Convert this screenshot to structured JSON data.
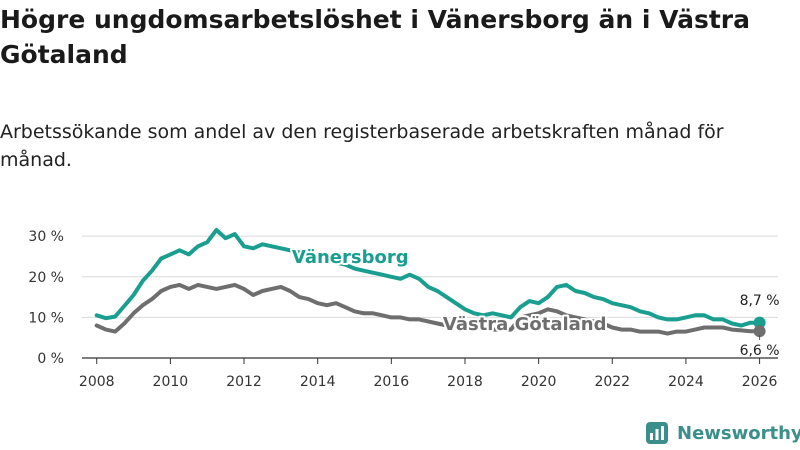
{
  "title": "Högre ungdomsarbetslöshet i Vänersborg än i Västra Götaland",
  "subtitle": "Arbetssökande som andel av den registerbaserade arbetskraften månad för månad.",
  "brand": "Newsworthy",
  "colors": {
    "vanersborg": "#1a9e8f",
    "vastra_gotaland": "#6e6e6e",
    "grid": "#d9d9d9",
    "axis": "#333333"
  },
  "chart_data": {
    "type": "line",
    "xlim": [
      2007.6,
      2026.5
    ],
    "ylim": [
      0,
      32
    ],
    "x_ticks": [
      2008,
      2010,
      2012,
      2014,
      2016,
      2018,
      2020,
      2022,
      2024,
      2026
    ],
    "x_tick_labels": [
      "2008",
      "2010",
      "2012",
      "2014",
      "2016",
      "2018",
      "2020",
      "2022",
      "2024",
      "2026"
    ],
    "y_ticks": [
      0,
      10,
      20,
      30
    ],
    "y_tick_labels": [
      "0 %",
      "10 %",
      "20 %",
      "30 %"
    ],
    "series": [
      {
        "name": "Vänersborg",
        "x": [
          2008.0,
          2008.25,
          2008.5,
          2008.75,
          2009.0,
          2009.25,
          2009.5,
          2009.75,
          2010.0,
          2010.25,
          2010.5,
          2010.75,
          2011.0,
          2011.25,
          2011.5,
          2011.75,
          2012.0,
          2012.25,
          2012.5,
          2012.75,
          2013.0,
          2013.25,
          2013.5,
          2013.75,
          2014.0,
          2014.25,
          2014.5,
          2014.75,
          2015.0,
          2015.25,
          2015.5,
          2015.75,
          2016.0,
          2016.25,
          2016.5,
          2016.75,
          2017.0,
          2017.25,
          2017.5,
          2017.75,
          2018.0,
          2018.25,
          2018.5,
          2018.75,
          2019.0,
          2019.25,
          2019.5,
          2019.75,
          2020.0,
          2020.25,
          2020.5,
          2020.75,
          2021.0,
          2021.25,
          2021.5,
          2021.75,
          2022.0,
          2022.25,
          2022.5,
          2022.75,
          2023.0,
          2023.25,
          2023.5,
          2023.75,
          2024.0,
          2024.25,
          2024.5,
          2024.75,
          2025.0,
          2025.25,
          2025.5,
          2025.75,
          2026.0
        ],
        "values": [
          10.5,
          9.8,
          10.2,
          12.8,
          15.5,
          19.0,
          21.5,
          24.5,
          25.5,
          26.5,
          25.5,
          27.5,
          28.5,
          31.5,
          29.5,
          30.5,
          27.5,
          27.0,
          28.0,
          27.5,
          27.0,
          26.5,
          26.0,
          25.5,
          24.5,
          24.0,
          23.5,
          23.0,
          22.0,
          21.5,
          21.0,
          20.5,
          20.0,
          19.5,
          20.5,
          19.5,
          17.5,
          16.5,
          15.0,
          13.5,
          12.0,
          11.0,
          10.5,
          11.0,
          10.5,
          10.0,
          12.5,
          14.0,
          13.5,
          15.0,
          17.5,
          18.0,
          16.5,
          16.0,
          15.0,
          14.5,
          13.5,
          13.0,
          12.5,
          11.5,
          11.0,
          10.0,
          9.5,
          9.5,
          10.0,
          10.5,
          10.5,
          9.5,
          9.5,
          8.5,
          8.0,
          8.7,
          8.7
        ]
      },
      {
        "name": "Västra Götaland",
        "x": [
          2008.0,
          2008.25,
          2008.5,
          2008.75,
          2009.0,
          2009.25,
          2009.5,
          2009.75,
          2010.0,
          2010.25,
          2010.5,
          2010.75,
          2011.0,
          2011.25,
          2011.5,
          2011.75,
          2012.0,
          2012.25,
          2012.5,
          2012.75,
          2013.0,
          2013.25,
          2013.5,
          2013.75,
          2014.0,
          2014.25,
          2014.5,
          2014.75,
          2015.0,
          2015.25,
          2015.5,
          2015.75,
          2016.0,
          2016.25,
          2016.5,
          2016.75,
          2017.0,
          2017.25,
          2017.5,
          2017.75,
          2018.0,
          2018.25,
          2018.5,
          2018.75,
          2019.0,
          2019.25,
          2019.5,
          2019.75,
          2020.0,
          2020.25,
          2020.5,
          2020.75,
          2021.0,
          2021.25,
          2021.5,
          2021.75,
          2022.0,
          2022.25,
          2022.5,
          2022.75,
          2023.0,
          2023.25,
          2023.5,
          2023.75,
          2024.0,
          2024.25,
          2024.5,
          2024.75,
          2025.0,
          2025.25,
          2025.5,
          2025.75,
          2026.0
        ],
        "values": [
          8.0,
          7.0,
          6.5,
          8.5,
          11.0,
          13.0,
          14.5,
          16.5,
          17.5,
          18.0,
          17.0,
          18.0,
          17.5,
          17.0,
          17.5,
          18.0,
          17.0,
          15.5,
          16.5,
          17.0,
          17.5,
          16.5,
          15.0,
          14.5,
          13.5,
          13.0,
          13.5,
          12.5,
          11.5,
          11.0,
          11.0,
          10.5,
          10.0,
          10.0,
          9.5,
          9.5,
          9.0,
          8.5,
          8.0,
          8.0,
          8.0,
          8.0,
          7.5,
          7.0,
          7.0,
          7.0,
          10.0,
          10.5,
          11.0,
          12.0,
          11.5,
          10.5,
          10.0,
          9.5,
          9.0,
          8.5,
          7.5,
          7.0,
          7.0,
          6.5,
          6.5,
          6.5,
          6.0,
          6.5,
          6.5,
          7.0,
          7.5,
          7.5,
          7.5,
          7.0,
          6.8,
          6.6,
          6.6
        ]
      }
    ],
    "series_labels": [
      "Vänersborg",
      "Västra Götaland"
    ],
    "end_labels": [
      "8,7 %",
      "6,6 %"
    ]
  }
}
